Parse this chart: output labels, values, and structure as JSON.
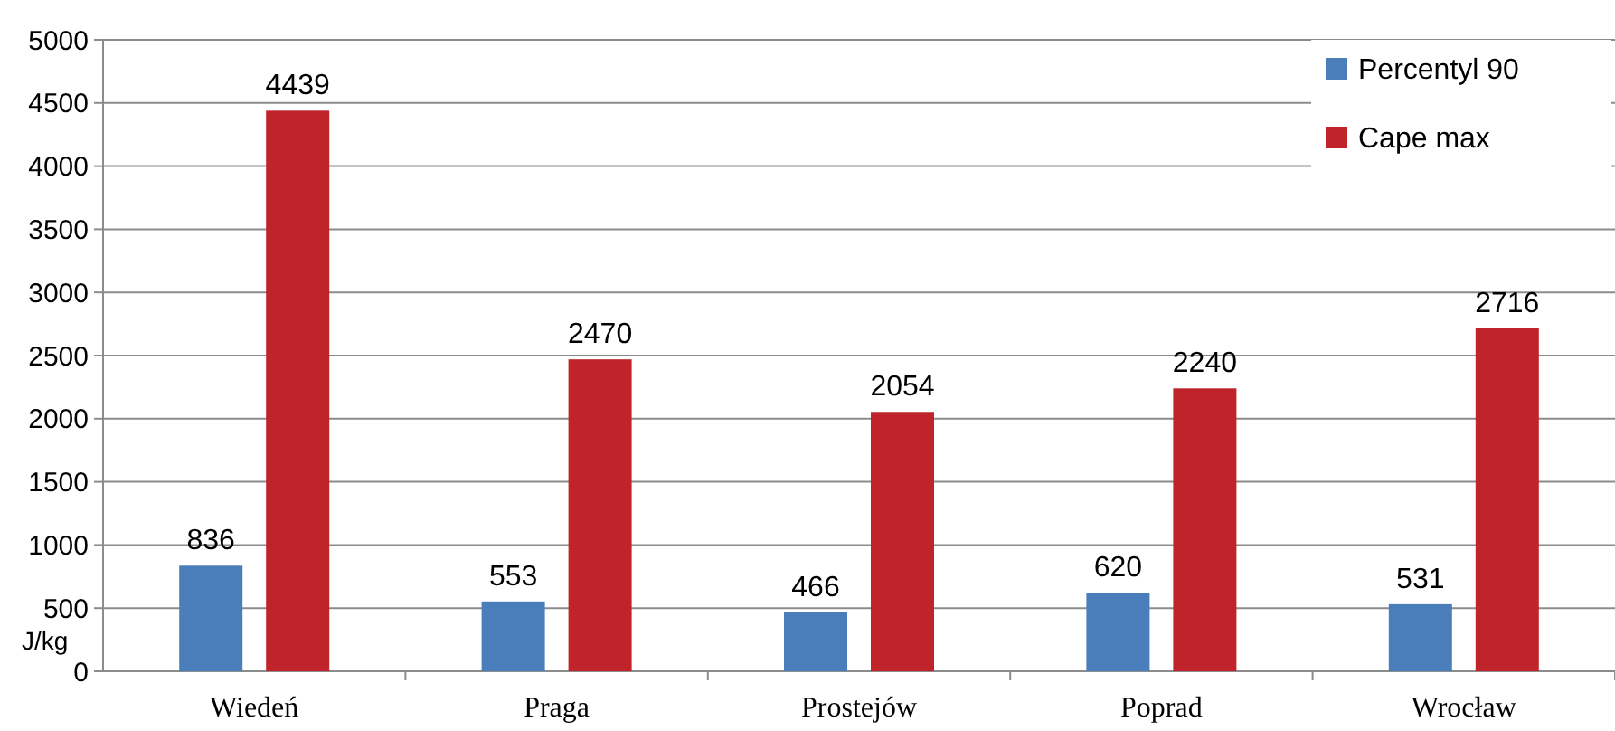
{
  "chart_data": {
    "type": "bar",
    "ylabel": "J/kg",
    "categories": [
      "Wiedeń",
      "Praga",
      "Prostejów",
      "Poprad",
      "Wrocław"
    ],
    "series": [
      {
        "name": "Percentyl 90",
        "color": "#4a7ebb",
        "values": [
          836,
          553,
          466,
          620,
          531
        ]
      },
      {
        "name": "Cape max",
        "color": "#c0232a",
        "values": [
          4439,
          2470,
          2054,
          2240,
          2716
        ]
      }
    ],
    "ylim": [
      0,
      5000
    ],
    "yticks": [
      0,
      500,
      1000,
      1500,
      2000,
      2500,
      3000,
      3500,
      4000,
      4500,
      5000
    ],
    "grid": "y",
    "legend": "top right",
    "data_labels": true
  }
}
